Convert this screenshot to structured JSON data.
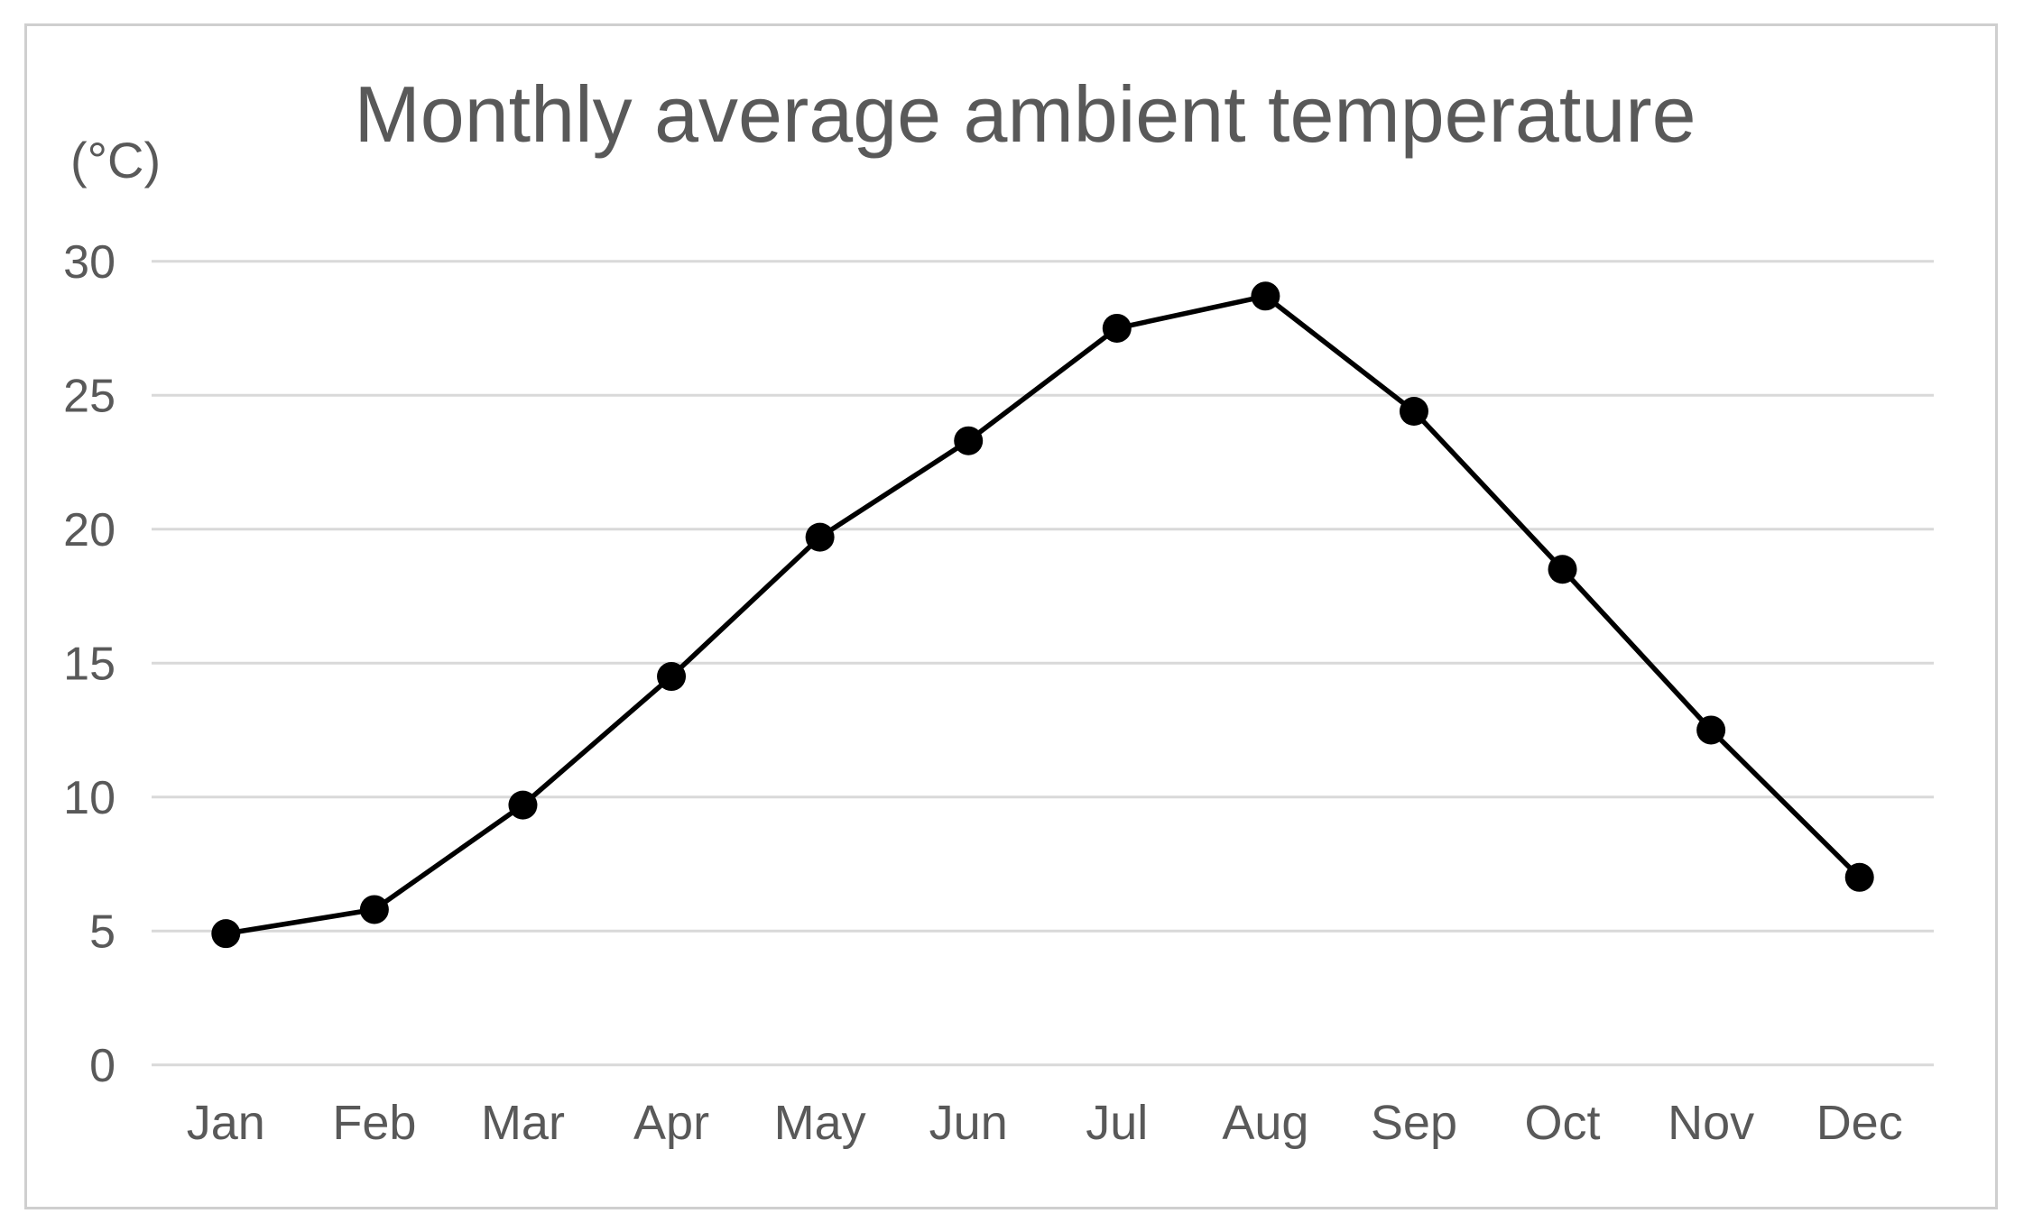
{
  "chart_data": {
    "type": "line",
    "title": "Monthly average ambient temperature",
    "ylabel": "(°C)",
    "xlabel": "",
    "categories": [
      "Jan",
      "Feb",
      "Mar",
      "Apr",
      "May",
      "Jun",
      "Jul",
      "Aug",
      "Sep",
      "Oct",
      "Nov",
      "Dec"
    ],
    "series": [
      {
        "name": "Monthly average ambient temperature",
        "values": [
          4.9,
          5.8,
          9.7,
          14.5,
          19.7,
          23.3,
          27.5,
          28.7,
          24.4,
          18.5,
          12.5,
          7.0
        ]
      }
    ],
    "ylim": [
      0,
      30
    ],
    "yticks": [
      0,
      5,
      10,
      15,
      20,
      25,
      30
    ],
    "grid": "horizontal",
    "legend": "none",
    "marker": "filled-circle"
  },
  "colors": {
    "line": "#000000",
    "marker": "#000000",
    "text": "#595959",
    "gridline": "#d9d9d9",
    "frame_border": "#cfcfcf",
    "background": "#ffffff"
  }
}
